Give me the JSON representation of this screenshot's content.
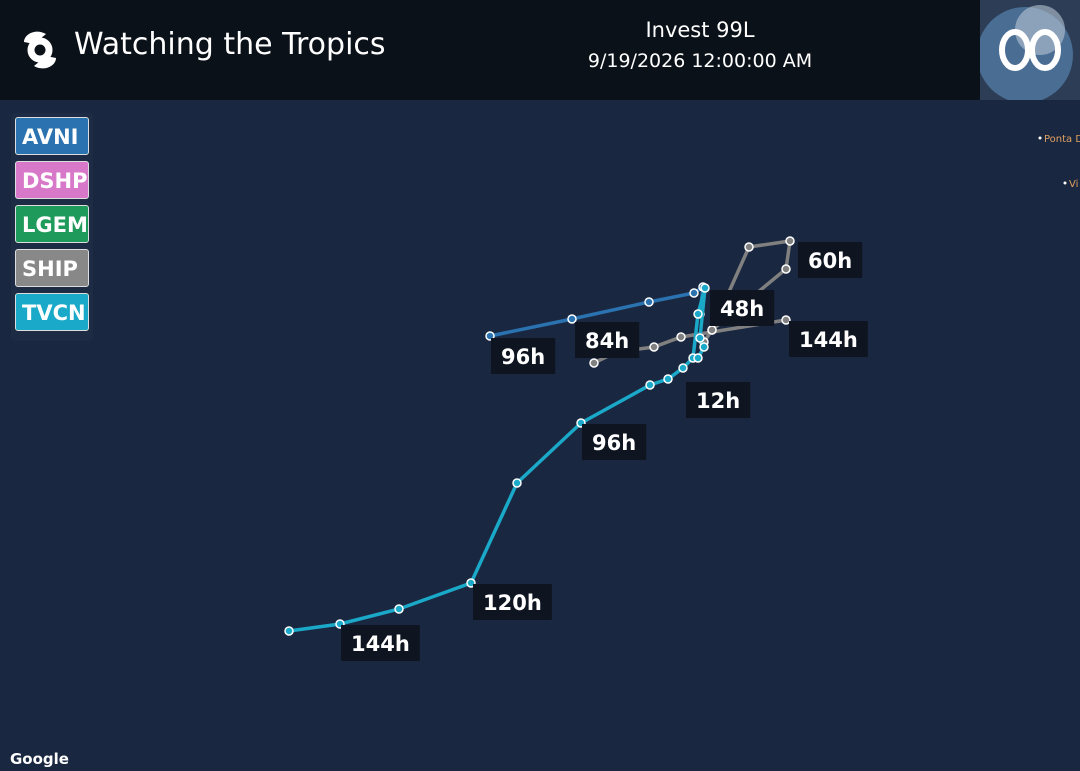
{
  "header": {
    "title": "Watching the Tropics",
    "storm": "Invest 99L",
    "datetime": "9/19/2026 12:00:00 AM"
  },
  "legend": [
    "AVNI",
    "DSHP",
    "LGEM",
    "SHIP",
    "TVCN"
  ],
  "track_labels": [
    "60h",
    "48h",
    "144h",
    "96h",
    "84h",
    "12h",
    "96h",
    "120h",
    "144h"
  ],
  "places": [
    "Ponta D",
    "Vi"
  ],
  "attribution": "Google"
}
